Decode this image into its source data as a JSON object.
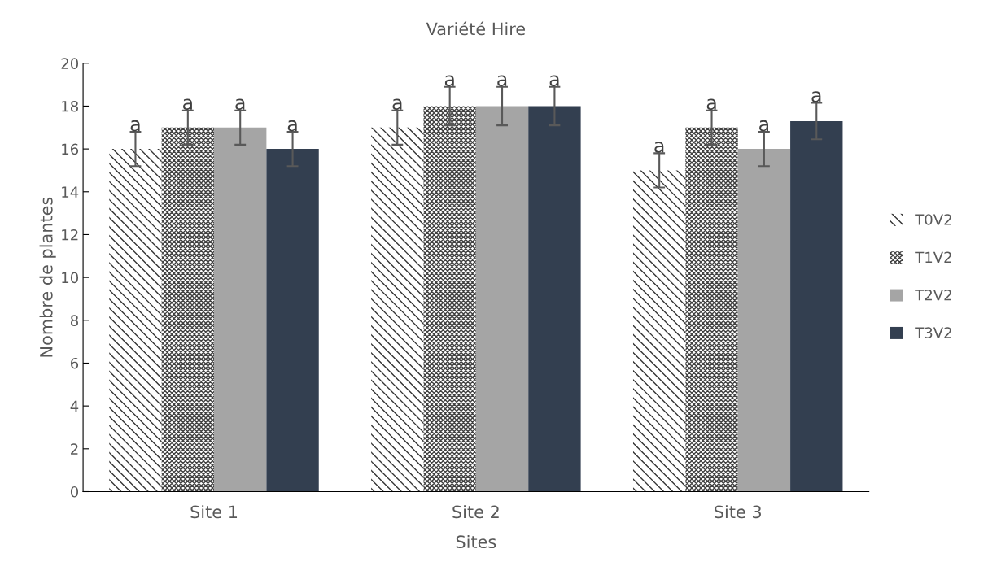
{
  "chart_data": {
    "type": "bar",
    "title": "Variété Hire",
    "xlabel": "Sites",
    "ylabel": "Nombre de plantes",
    "categories": [
      "Site 1",
      "Site 2",
      "Site 3"
    ],
    "series": [
      {
        "name": "T0V2",
        "color": "#333333",
        "values": [
          16,
          17,
          15
        ],
        "errors": [
          0.8,
          0.8,
          0.8
        ],
        "value_labels": [
          "a",
          "a",
          "a"
        ]
      },
      {
        "name": "T1V2",
        "color": "#404040",
        "values": [
          17,
          18,
          17
        ],
        "errors": [
          0.8,
          0.9,
          0.8
        ],
        "value_labels": [
          "a",
          "a",
          "a"
        ]
      },
      {
        "name": "T2V2",
        "color": "#a5a5a5",
        "values": [
          17,
          18,
          16
        ],
        "errors": [
          0.8,
          0.9,
          0.8
        ],
        "value_labels": [
          "a",
          "a",
          "a"
        ]
      },
      {
        "name": "T3V2",
        "color": "#333f50",
        "values": [
          16,
          18,
          17.3
        ],
        "errors": [
          0.8,
          0.9,
          0.85
        ],
        "value_labels": [
          "a",
          "a",
          "a"
        ]
      }
    ],
    "ylim": [
      0,
      20
    ],
    "yticks": [
      0,
      2,
      4,
      6,
      8,
      10,
      12,
      14,
      16,
      18,
      20
    ],
    "grid": false,
    "legend": "right"
  }
}
